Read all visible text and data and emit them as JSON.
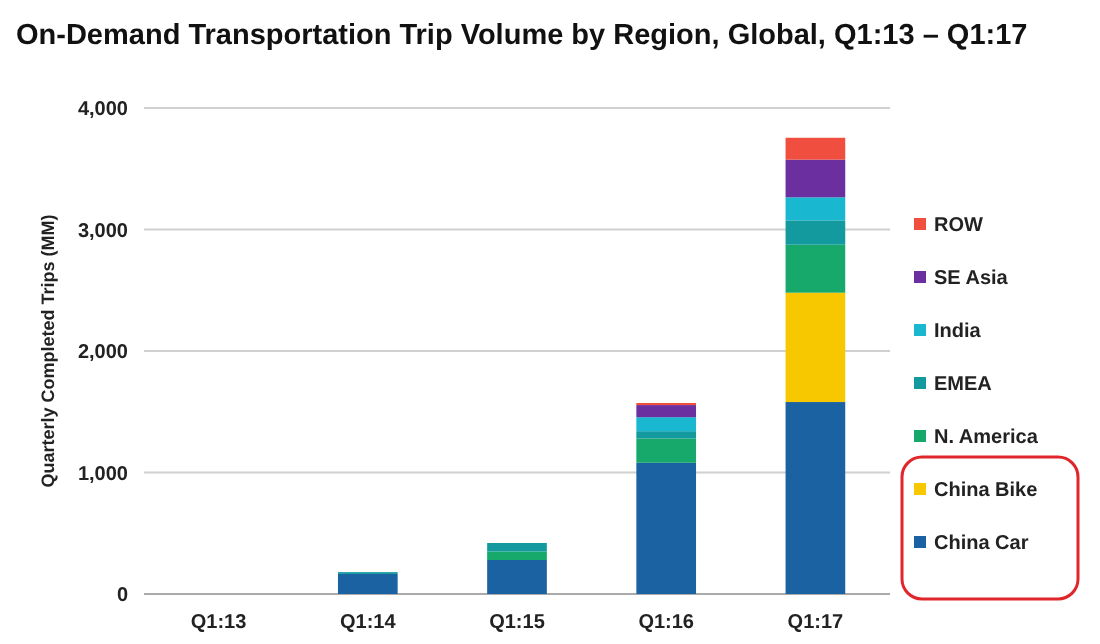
{
  "chart_data": {
    "type": "bar",
    "title": "On-Demand Transportation Trip Volume by Region, Global, Q1:13 – Q1:17",
    "ylabel": "Quarterly Completed Trips (MM)",
    "categories": [
      "Q1:13",
      "Q1:14",
      "Q1:15",
      "Q1:16",
      "Q1:17"
    ],
    "stacked": true,
    "ylim": [
      0,
      4000
    ],
    "yticks": [
      {
        "value": 0,
        "label": "0"
      },
      {
        "value": 1000,
        "label": "1,000"
      },
      {
        "value": 2000,
        "label": "2,000"
      },
      {
        "value": 3000,
        "label": "3,000"
      },
      {
        "value": 4000,
        "label": "4,000"
      }
    ],
    "grid": "y",
    "legend": "right",
    "series": [
      {
        "name": "China Car",
        "color": "#1b62a3",
        "values": [
          0,
          165,
          280,
          1080,
          1580
        ]
      },
      {
        "name": "China Bike",
        "color": "#f7c800",
        "values": [
          0,
          0,
          0,
          0,
          900
        ]
      },
      {
        "name": "N. America",
        "color": "#17a86b",
        "values": [
          0,
          0,
          70,
          200,
          395
        ]
      },
      {
        "name": "EMEA",
        "color": "#139a9f",
        "values": [
          0,
          15,
          70,
          60,
          200
        ]
      },
      {
        "name": "India",
        "color": "#1ab7d0",
        "values": [
          0,
          0,
          0,
          115,
          190
        ]
      },
      {
        "name": "SE Asia",
        "color": "#6b2fa0",
        "values": [
          0,
          0,
          0,
          100,
          310
        ]
      },
      {
        "name": "ROW",
        "color": "#f04e3e",
        "values": [
          0,
          0,
          0,
          17,
          180
        ]
      }
    ]
  }
}
